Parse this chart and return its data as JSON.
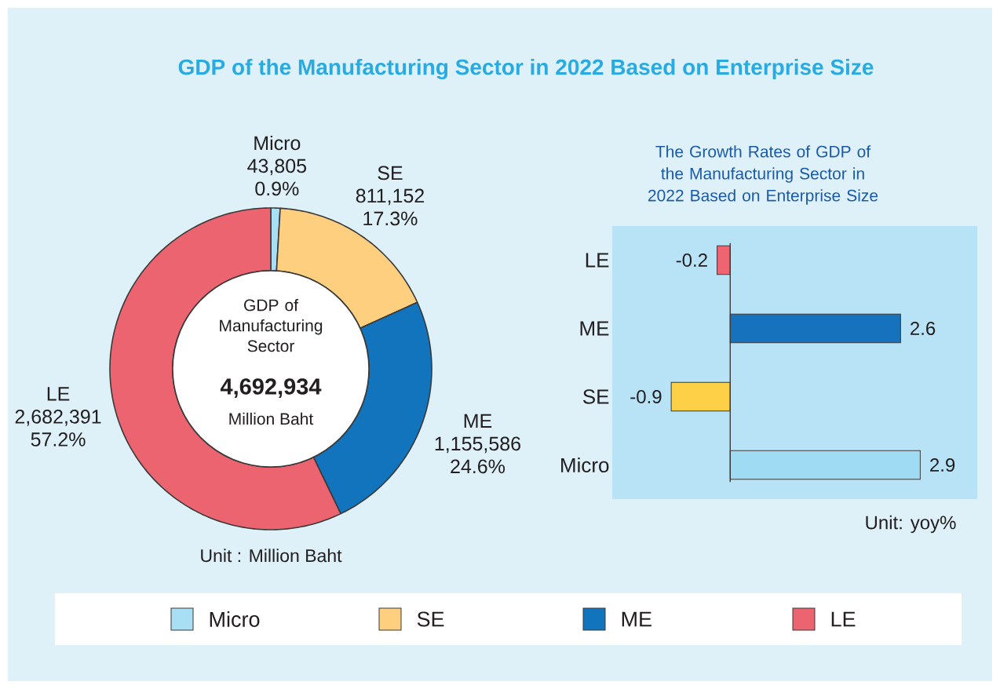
{
  "chart_data": [
    {
      "type": "donut",
      "title": "GDP of the Manufacturing Sector in 2022 Based on Enterprise Size",
      "categories": [
        "Micro",
        "SE",
        "ME",
        "LE"
      ],
      "values": [
        43805,
        811152,
        1155586,
        2682391
      ],
      "colors": [
        "#a8dff5",
        "#fecf7e",
        "#1174bd",
        "#ec6470"
      ],
      "value_labels": [
        "43,805",
        "811,152",
        "1,155,586",
        "2,682,391"
      ],
      "legend": "bottom",
      "annotations": [
        {
          "text": "0.9%",
          "x": "Micro"
        },
        {
          "text": "17.3%",
          "x": "SE"
        },
        {
          "text": "24.6%",
          "x": "ME"
        },
        {
          "text": "57.2%",
          "x": "LE"
        },
        "GDP of Manufacturing Sector",
        "4,692,934",
        "Million Baht",
        "Unit : Million Baht"
      ]
    },
    {
      "type": "bar",
      "orientation": "horizontal",
      "title": "The Growth Rates of GDP of the Manufacturing Sector in 2022 Based on Enterprise Size",
      "categories": [
        "LE",
        "ME",
        "SE",
        "Micro"
      ],
      "values": [
        -0.2,
        2.6,
        -0.9,
        2.9
      ],
      "colors": [
        "#ee6470",
        "#1672bd",
        "#fdd048",
        "#9fdcf3"
      ],
      "data_labels": true,
      "annotations": [
        "Unit: yoy%"
      ]
    }
  ]
}
